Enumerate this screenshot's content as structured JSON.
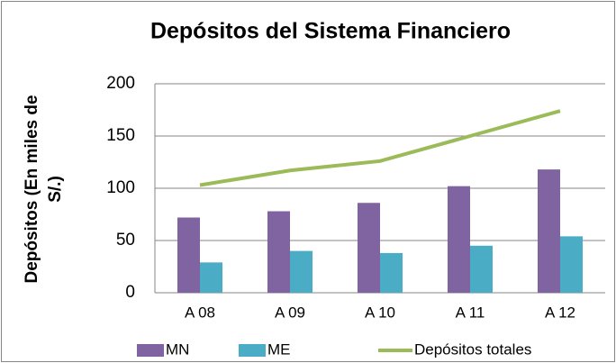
{
  "chart_data": {
    "type": "bar-line",
    "title": "Depósitos del Sistema Financiero",
    "ylabel": [
      "Depósitos (En miles de",
      "S/.)"
    ],
    "categories": [
      "A 08",
      "A 09",
      "A 10",
      "A 11",
      "A 12"
    ],
    "series": [
      {
        "name": "MN",
        "color": "#8064a2",
        "type": "bar",
        "values": [
          72,
          78,
          86,
          102,
          118
        ]
      },
      {
        "name": "ME",
        "color": "#4bacc6",
        "type": "bar",
        "values": [
          29,
          40,
          38,
          45,
          54
        ]
      },
      {
        "name": "Depósitos totales",
        "color": "#9bbb59",
        "type": "line",
        "values": [
          103,
          117,
          126,
          150,
          174
        ]
      }
    ],
    "ylim": [
      0,
      200
    ],
    "yticks": [
      0,
      50,
      100,
      150,
      200
    ],
    "grid": true,
    "legend": "bottom"
  }
}
